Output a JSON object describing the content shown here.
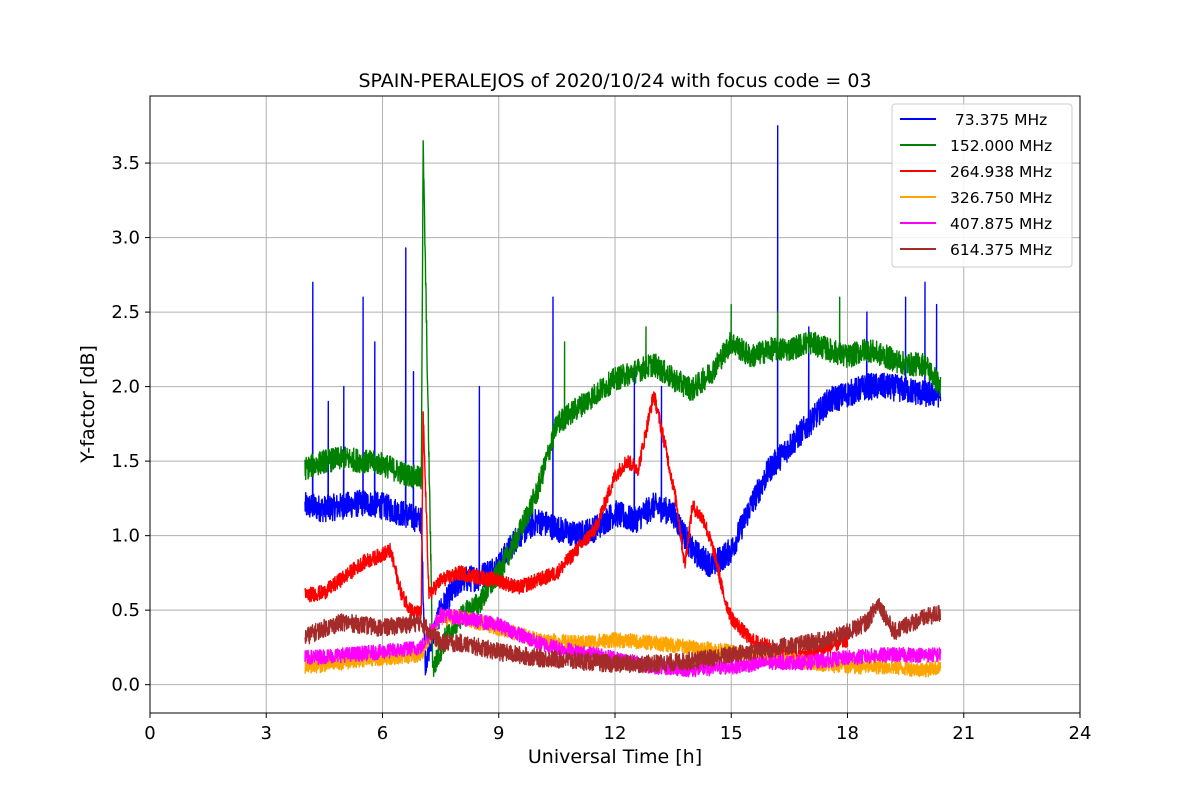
{
  "chart_data": {
    "type": "line",
    "title": "SPAIN-PERALEJOS of 2020/10/24 with focus code = 03",
    "xlabel": "Universal Time [h]",
    "ylabel": "Y-factor [dB]",
    "xlim": [
      0,
      24
    ],
    "ylim": [
      -0.19,
      3.95
    ],
    "xticks": [
      0,
      3,
      6,
      9,
      12,
      15,
      18,
      21,
      24
    ],
    "xtick_labels": [
      "0",
      "3",
      "6",
      "9",
      "12",
      "15",
      "18",
      "21",
      "24"
    ],
    "yticks": [
      0.0,
      0.5,
      1.0,
      1.5,
      2.0,
      2.5,
      3.0,
      3.5
    ],
    "ytick_labels": [
      "0.0",
      "0.5",
      "1.0",
      "1.5",
      "2.0",
      "2.5",
      "3.0",
      "3.5"
    ],
    "grid": true,
    "legend_position": "top-right",
    "series": [
      {
        "name": " 73.375 MHz",
        "color": "#0000ff",
        "x": [
          4.0,
          4.5,
          5.0,
          5.5,
          6.0,
          6.5,
          7.0,
          7.1,
          7.5,
          8.0,
          8.5,
          9.0,
          9.5,
          10.0,
          10.5,
          11.0,
          11.5,
          12.0,
          12.5,
          13.0,
          13.5,
          14.0,
          14.5,
          15.0,
          15.5,
          16.0,
          16.5,
          17.0,
          17.5,
          18.0,
          18.5,
          19.0,
          19.5,
          20.0,
          20.4
        ],
        "y": [
          1.2,
          1.18,
          1.2,
          1.22,
          1.2,
          1.15,
          1.1,
          0.15,
          0.5,
          0.7,
          0.72,
          0.8,
          1.0,
          1.1,
          1.05,
          1.0,
          1.05,
          1.15,
          1.1,
          1.2,
          1.15,
          0.9,
          0.8,
          0.9,
          1.2,
          1.45,
          1.6,
          1.75,
          1.9,
          1.95,
          2.0,
          2.0,
          1.98,
          1.95,
          1.95
        ],
        "spikes": [
          [
            4.2,
            2.7
          ],
          [
            4.6,
            1.9
          ],
          [
            5.0,
            2.0
          ],
          [
            5.5,
            2.6
          ],
          [
            5.8,
            2.3
          ],
          [
            6.6,
            2.93
          ],
          [
            6.8,
            2.1
          ],
          [
            8.5,
            2.0
          ],
          [
            10.4,
            2.6
          ],
          [
            12.5,
            2.1
          ],
          [
            13.2,
            2.0
          ],
          [
            16.2,
            3.75
          ],
          [
            17.0,
            2.4
          ],
          [
            18.5,
            2.5
          ],
          [
            19.5,
            2.6
          ],
          [
            20.0,
            2.7
          ],
          [
            20.3,
            2.55
          ]
        ]
      },
      {
        "name": "152.000 MHz",
        "color": "#008000",
        "x": [
          4.0,
          4.5,
          5.0,
          5.5,
          6.0,
          6.5,
          7.0,
          7.05,
          7.3,
          7.6,
          8.0,
          8.5,
          9.0,
          9.5,
          10.0,
          10.5,
          11.0,
          11.5,
          12.0,
          12.5,
          13.0,
          13.5,
          14.0,
          14.5,
          15.0,
          15.5,
          16.0,
          16.5,
          17.0,
          17.5,
          18.0,
          18.5,
          19.0,
          19.5,
          20.0,
          20.4
        ],
        "y": [
          1.45,
          1.5,
          1.52,
          1.5,
          1.48,
          1.42,
          1.38,
          3.6,
          0.1,
          0.3,
          0.45,
          0.55,
          0.75,
          1.0,
          1.3,
          1.75,
          1.85,
          1.95,
          2.05,
          2.1,
          2.15,
          2.05,
          1.98,
          2.1,
          2.3,
          2.2,
          2.25,
          2.25,
          2.3,
          2.25,
          2.2,
          2.25,
          2.2,
          2.15,
          2.15,
          2.0
        ],
        "spikes": [
          [
            10.7,
            2.3
          ],
          [
            12.8,
            2.4
          ],
          [
            15.0,
            2.55
          ],
          [
            16.2,
            2.5
          ],
          [
            17.8,
            2.6
          ]
        ]
      },
      {
        "name": "264.938 MHz",
        "color": "#ff0000",
        "x": [
          4.0,
          4.5,
          5.0,
          5.5,
          5.8,
          6.2,
          6.5,
          6.8,
          7.0,
          7.05,
          7.2,
          7.5,
          8.0,
          8.5,
          9.0,
          9.5,
          10.0,
          10.5,
          11.0,
          11.5,
          12.0,
          12.3,
          12.6,
          13.0,
          13.3,
          13.6,
          13.8,
          14.0,
          14.3,
          14.6,
          14.8,
          15.0,
          15.5,
          16.0,
          16.5,
          17.0,
          17.5,
          18.0
        ],
        "y": [
          0.6,
          0.62,
          0.72,
          0.82,
          0.85,
          0.9,
          0.6,
          0.48,
          0.48,
          1.8,
          0.6,
          0.7,
          0.75,
          0.72,
          0.7,
          0.65,
          0.7,
          0.75,
          0.9,
          1.05,
          1.4,
          1.5,
          1.45,
          1.95,
          1.6,
          1.2,
          0.8,
          1.2,
          1.1,
          0.85,
          0.6,
          0.45,
          0.3,
          0.25,
          0.18,
          0.2,
          0.25,
          0.3
        ]
      },
      {
        "name": "326.750 MHz",
        "color": "#ffa500",
        "x": [
          4.0,
          5.0,
          6.0,
          7.0,
          7.5,
          8.0,
          9.0,
          10.0,
          11.0,
          12.0,
          13.0,
          14.0,
          15.0,
          16.0,
          17.0,
          18.0,
          19.0,
          20.0,
          20.4
        ],
        "y": [
          0.12,
          0.15,
          0.18,
          0.2,
          0.45,
          0.45,
          0.38,
          0.3,
          0.28,
          0.3,
          0.28,
          0.25,
          0.22,
          0.18,
          0.15,
          0.12,
          0.12,
          0.1,
          0.12
        ]
      },
      {
        "name": "407.875 MHz",
        "color": "#ff00ff",
        "x": [
          4.0,
          5.0,
          6.0,
          7.0,
          7.5,
          8.0,
          9.0,
          10.0,
          11.0,
          12.0,
          13.0,
          14.0,
          15.0,
          16.0,
          17.0,
          18.0,
          19.0,
          20.0,
          20.4
        ],
        "y": [
          0.18,
          0.2,
          0.22,
          0.25,
          0.47,
          0.45,
          0.4,
          0.28,
          0.22,
          0.18,
          0.12,
          0.1,
          0.12,
          0.15,
          0.15,
          0.18,
          0.2,
          0.2,
          0.2
        ]
      },
      {
        "name": "614.375 MHz",
        "color": "#a52a2a",
        "x": [
          4.0,
          4.5,
          5.0,
          5.5,
          6.0,
          6.5,
          7.0,
          7.5,
          8.0,
          9.0,
          10.0,
          11.0,
          12.0,
          13.0,
          14.0,
          15.0,
          16.0,
          17.0,
          17.5,
          18.0,
          18.5,
          18.8,
          19.2,
          19.5,
          20.0,
          20.4
        ],
        "y": [
          0.32,
          0.38,
          0.42,
          0.4,
          0.38,
          0.4,
          0.42,
          0.28,
          0.28,
          0.22,
          0.18,
          0.16,
          0.14,
          0.14,
          0.16,
          0.2,
          0.24,
          0.28,
          0.3,
          0.35,
          0.42,
          0.55,
          0.35,
          0.4,
          0.45,
          0.48
        ]
      }
    ]
  }
}
